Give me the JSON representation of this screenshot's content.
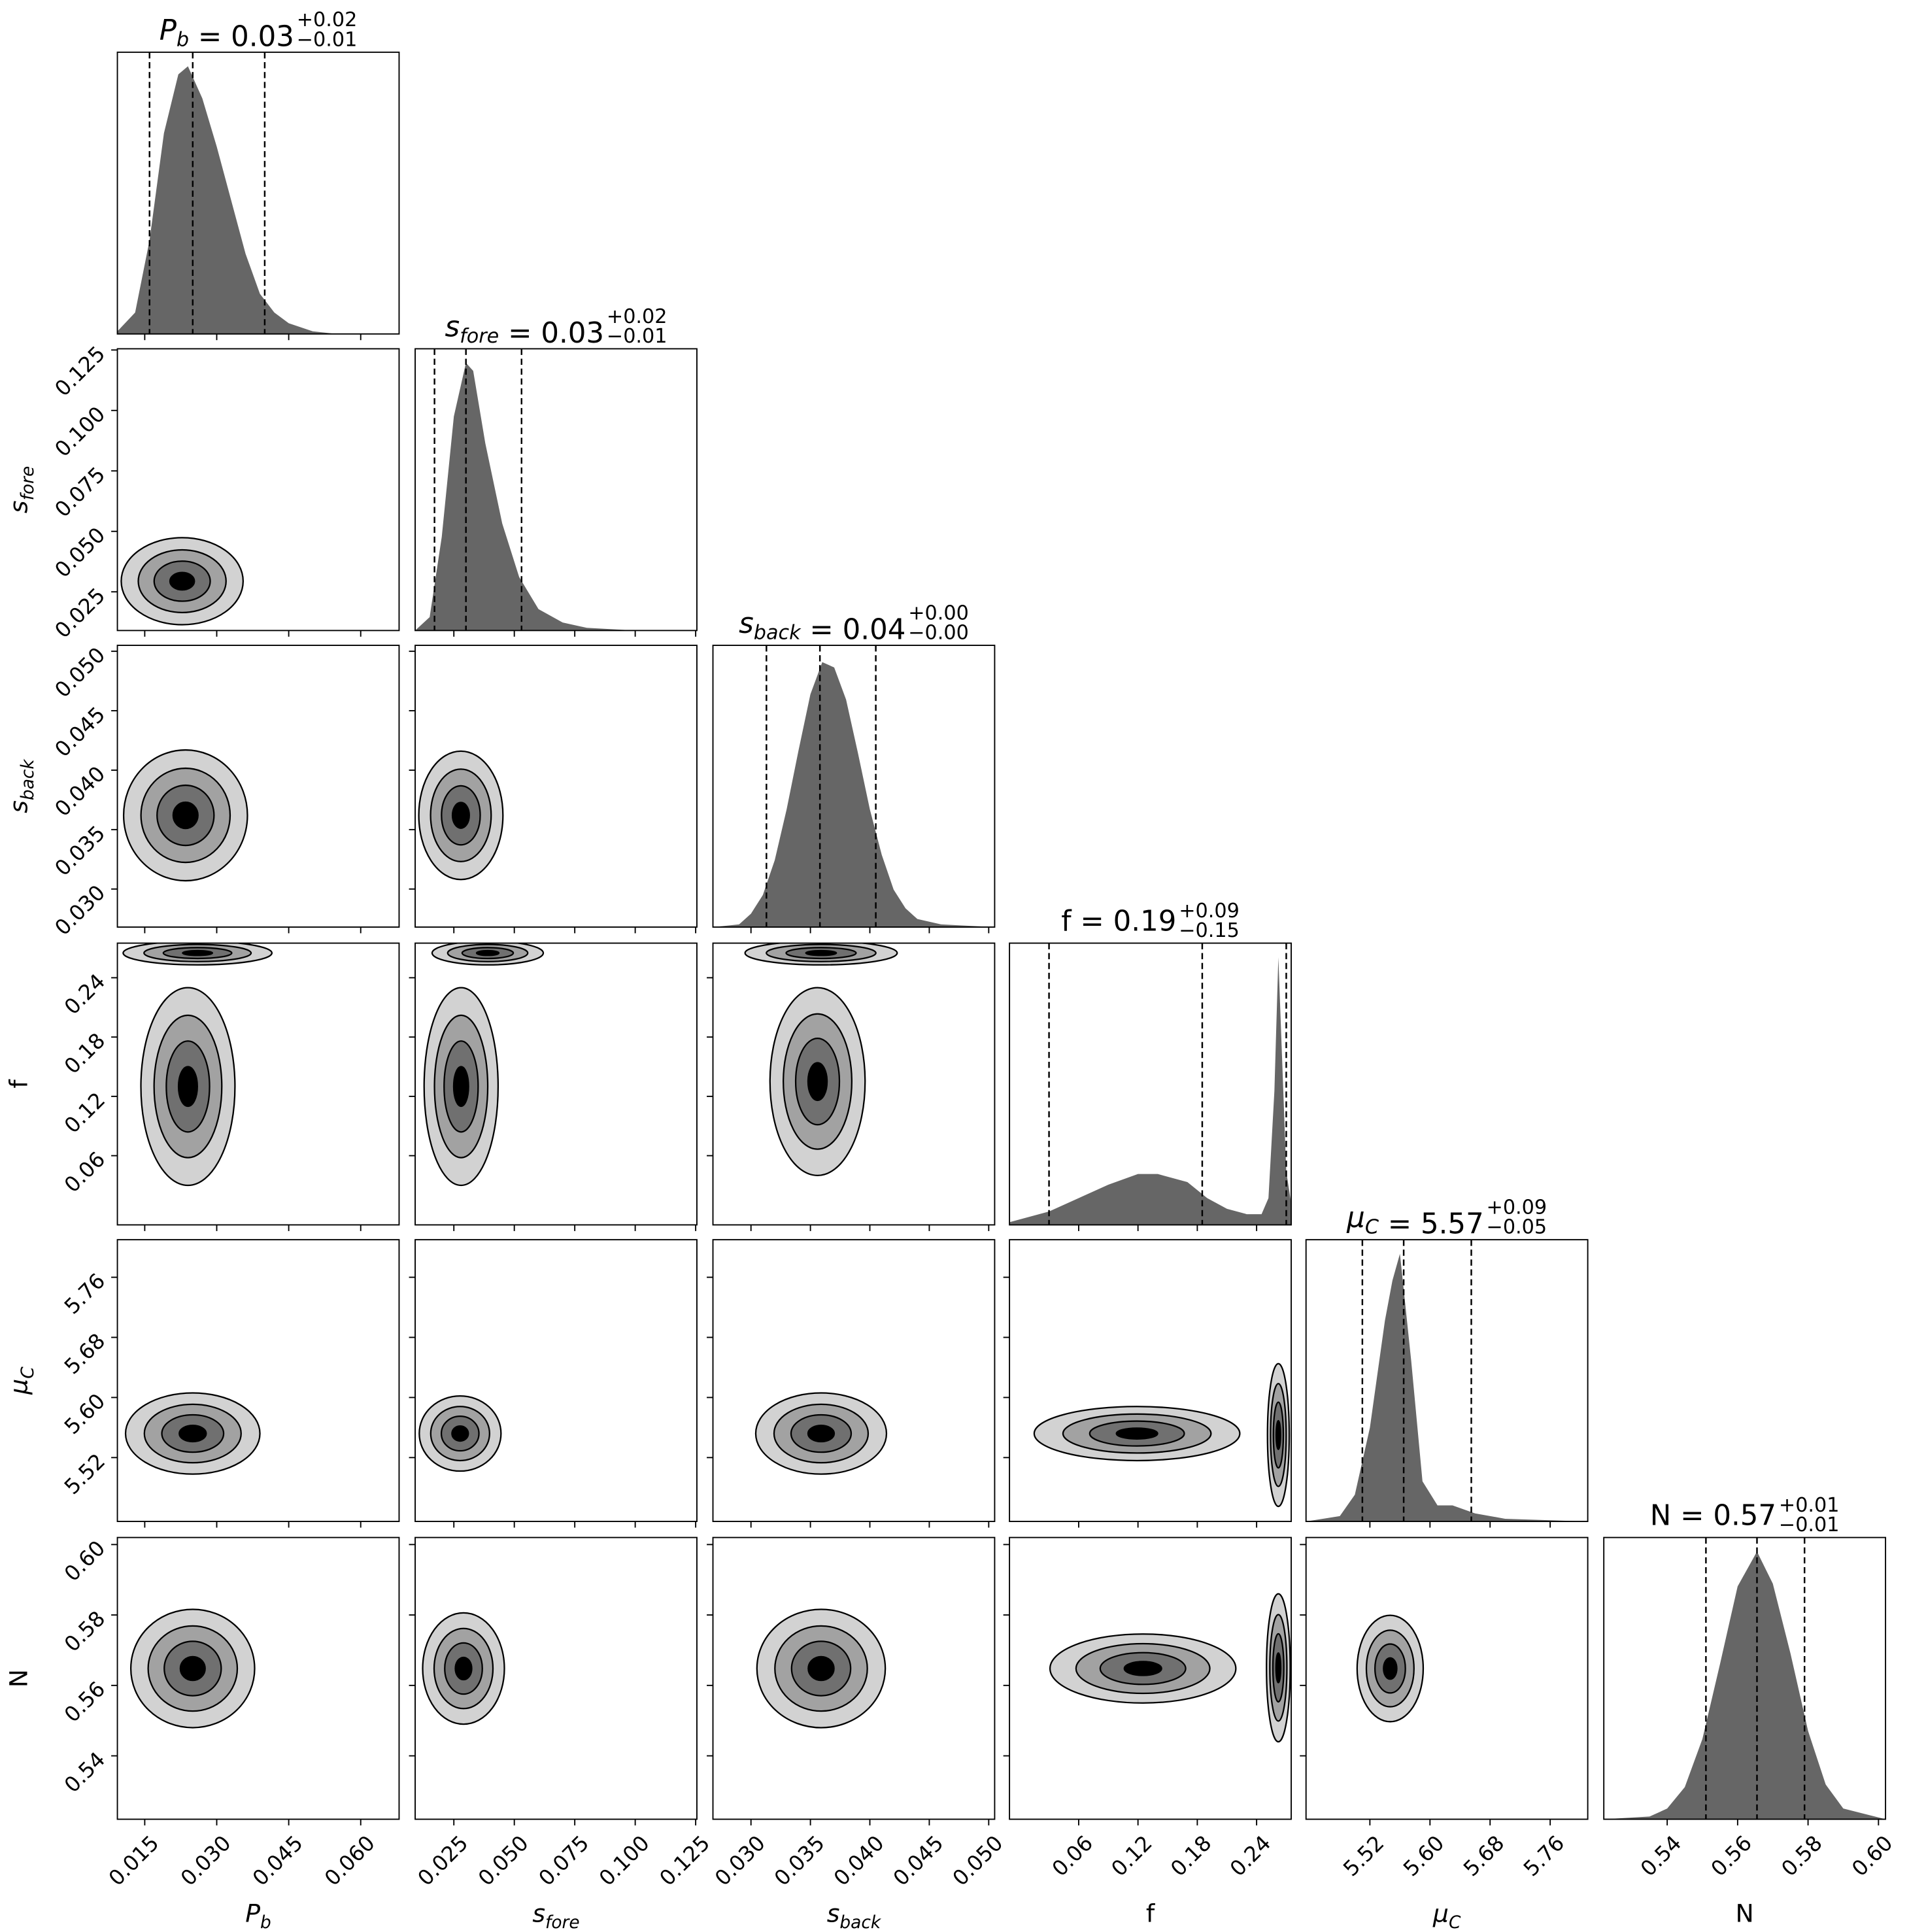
{
  "chart_data": {
    "type": "corner",
    "parameters": [
      {
        "key": "Pb",
        "name": "P",
        "sub": "b",
        "italic": true,
        "range": [
          0.0093,
          0.068
        ],
        "ticks": [
          0.015,
          0.03,
          0.045,
          0.06
        ],
        "tick_labels": [
          "0.015",
          "0.030",
          "0.045",
          "0.060"
        ],
        "title": {
          "value": "0.03",
          "plus": "+0.02",
          "minus": "−0.01"
        },
        "quantiles": [
          0.016,
          0.025,
          0.04
        ],
        "marginal": {
          "x": [
            0.0093,
            0.013,
            0.016,
            0.019,
            0.022,
            0.024,
            0.027,
            0.03,
            0.033,
            0.036,
            0.039,
            0.042,
            0.045,
            0.05,
            0.055,
            0.068
          ],
          "density": [
            0.01,
            0.08,
            0.35,
            0.75,
            0.97,
            1.0,
            0.88,
            0.7,
            0.5,
            0.3,
            0.15,
            0.08,
            0.04,
            0.01,
            0.0,
            0.0
          ]
        }
      },
      {
        "key": "sfore",
        "name": "s",
        "sub": "fore",
        "italic": true,
        "range": [
          0.009,
          0.1255
        ],
        "ticks": [
          0.025,
          0.05,
          0.075,
          0.1,
          0.125
        ],
        "tick_labels": [
          "0.025",
          "0.050",
          "0.075",
          "0.100",
          "0.125"
        ],
        "title": {
          "value": "0.03",
          "plus": "+0.02",
          "minus": "−0.01"
        },
        "quantiles": [
          0.017,
          0.03,
          0.053
        ],
        "marginal": {
          "x": [
            0.009,
            0.015,
            0.02,
            0.025,
            0.03,
            0.033,
            0.038,
            0.045,
            0.052,
            0.06,
            0.07,
            0.08,
            0.1,
            0.1255
          ],
          "density": [
            0.0,
            0.05,
            0.35,
            0.8,
            1.0,
            0.97,
            0.7,
            0.4,
            0.2,
            0.08,
            0.03,
            0.01,
            0.0,
            0.0
          ]
        }
      },
      {
        "key": "sback",
        "name": "s",
        "sub": "back",
        "italic": true,
        "range": [
          0.0268,
          0.0505
        ],
        "ticks": [
          0.03,
          0.035,
          0.04,
          0.045,
          0.05
        ],
        "tick_labels": [
          "0.030",
          "0.035",
          "0.040",
          "0.045",
          "0.050"
        ],
        "title": {
          "value": "0.04",
          "plus": "+0.00",
          "minus": "−0.00"
        },
        "quantiles": [
          0.0313,
          0.0358,
          0.0405
        ],
        "marginal": {
          "x": [
            0.0268,
            0.029,
            0.03,
            0.031,
            0.032,
            0.033,
            0.034,
            0.035,
            0.036,
            0.037,
            0.038,
            0.039,
            0.04,
            0.041,
            0.042,
            0.043,
            0.044,
            0.046,
            0.0505
          ],
          "density": [
            0.0,
            0.01,
            0.05,
            0.12,
            0.25,
            0.44,
            0.66,
            0.87,
            0.99,
            0.97,
            0.85,
            0.65,
            0.44,
            0.27,
            0.14,
            0.07,
            0.03,
            0.01,
            0.0
          ]
        }
      },
      {
        "key": "f",
        "name": "f",
        "sub": "",
        "italic": false,
        "range": [
          -0.01,
          0.275
        ],
        "ticks": [
          0.06,
          0.12,
          0.18,
          0.24
        ],
        "tick_labels": [
          "0.06",
          "0.12",
          "0.18",
          "0.24"
        ],
        "title": {
          "value": "0.19",
          "plus": "+0.09",
          "minus": "−0.15"
        },
        "quantiles": [
          0.03,
          0.185,
          0.27
        ],
        "marginal": {
          "x": [
            -0.01,
            0.0,
            0.03,
            0.06,
            0.09,
            0.12,
            0.14,
            0.17,
            0.19,
            0.21,
            0.23,
            0.245,
            0.252,
            0.258,
            0.262,
            0.266,
            0.27,
            0.275
          ],
          "density": [
            0.01,
            0.02,
            0.05,
            0.1,
            0.15,
            0.19,
            0.19,
            0.16,
            0.1,
            0.06,
            0.04,
            0.04,
            0.1,
            0.5,
            1.0,
            0.6,
            0.2,
            0.08
          ]
        }
      },
      {
        "key": "muC",
        "name": "μ",
        "sub": "C",
        "italic": true,
        "range": [
          5.435,
          5.81
        ],
        "ticks": [
          5.52,
          5.6,
          5.68,
          5.76
        ],
        "tick_labels": [
          "5.52",
          "5.60",
          "5.68",
          "5.76"
        ],
        "title": {
          "value": "5.57",
          "plus": "+0.09",
          "minus": "−0.05"
        },
        "quantiles": [
          5.51,
          5.565,
          5.655
        ],
        "marginal": {
          "x": [
            5.435,
            5.48,
            5.5,
            5.52,
            5.54,
            5.55,
            5.56,
            5.575,
            5.59,
            5.61,
            5.63,
            5.66,
            5.7,
            5.81
          ],
          "density": [
            0.0,
            0.02,
            0.1,
            0.35,
            0.75,
            0.9,
            1.0,
            0.6,
            0.15,
            0.06,
            0.06,
            0.03,
            0.01,
            0.0
          ]
        }
      },
      {
        "key": "N",
        "name": "N",
        "sub": "",
        "italic": false,
        "range": [
          0.522,
          0.602
        ],
        "ticks": [
          0.54,
          0.56,
          0.58,
          0.6
        ],
        "tick_labels": [
          "0.54",
          "0.56",
          "0.58",
          "0.60"
        ],
        "title": {
          "value": "0.57",
          "plus": "+0.01",
          "minus": "−0.01"
        },
        "quantiles": [
          0.551,
          0.5655,
          0.579
        ],
        "marginal": {
          "x": [
            0.522,
            0.535,
            0.54,
            0.545,
            0.55,
            0.555,
            0.56,
            0.5655,
            0.57,
            0.575,
            0.58,
            0.585,
            0.59,
            0.602
          ],
          "density": [
            0.0,
            0.01,
            0.04,
            0.12,
            0.3,
            0.58,
            0.87,
            1.0,
            0.88,
            0.62,
            0.33,
            0.13,
            0.04,
            0.0
          ]
        }
      }
    ],
    "pairs": [
      {
        "x": "Pb",
        "y": "sfore",
        "blobs": [
          {
            "center": [
              0.0228,
              0.0294
            ],
            "extent": [
              0.0127,
              0.018
            ]
          }
        ]
      },
      {
        "x": "Pb",
        "y": "sback",
        "blobs": [
          {
            "center": [
              0.0235,
              0.0362
            ],
            "extent": [
              0.0129,
              0.0055
            ]
          }
        ]
      },
      {
        "x": "sfore",
        "y": "sback",
        "blobs": [
          {
            "center": [
              0.0279,
              0.0362
            ],
            "extent": [
              0.0174,
              0.0054
            ]
          }
        ]
      },
      {
        "x": "Pb",
        "y": "f",
        "blobs": [
          {
            "center": [
              0.026,
              0.265
            ],
            "extent": [
              0.0155,
              0.012
            ]
          },
          {
            "center": [
              0.024,
              0.13
            ],
            "extent": [
              0.0098,
              0.1
            ]
          }
        ]
      },
      {
        "x": "sfore",
        "y": "f",
        "blobs": [
          {
            "center": [
              0.039,
              0.265
            ],
            "extent": [
              0.023,
              0.012
            ]
          },
          {
            "center": [
              0.028,
              0.13
            ],
            "extent": [
              0.0153,
              0.1
            ]
          }
        ]
      },
      {
        "x": "sback",
        "y": "f",
        "blobs": [
          {
            "center": [
              0.0359,
              0.265
            ],
            "extent": [
              0.0064,
              0.012
            ]
          },
          {
            "center": [
              0.0356,
              0.135
            ],
            "extent": [
              0.004,
              0.095
            ]
          }
        ]
      },
      {
        "x": "Pb",
        "y": "muC",
        "blobs": [
          {
            "center": [
              0.025,
              5.552
            ],
            "extent": [
              0.014,
              0.054
            ]
          }
        ]
      },
      {
        "x": "sfore",
        "y": "muC",
        "blobs": [
          {
            "center": [
              0.0276,
              5.552
            ],
            "extent": [
              0.0169,
              0.05
            ]
          }
        ]
      },
      {
        "x": "sback",
        "y": "muC",
        "blobs": [
          {
            "center": [
              0.0359,
              5.552
            ],
            "extent": [
              0.0055,
              0.054
            ]
          }
        ]
      },
      {
        "x": "f",
        "y": "muC",
        "blobs": [
          {
            "center": [
              0.119,
              5.552
            ],
            "extent": [
              0.104,
              0.036
            ]
          },
          {
            "center": [
              0.262,
              5.55
            ],
            "extent": [
              0.011,
              0.095
            ]
          }
        ]
      },
      {
        "x": "Pb",
        "y": "N",
        "blobs": [
          {
            "center": [
              0.025,
              0.5648
            ],
            "extent": [
              0.0129,
              0.0168
            ]
          }
        ]
      },
      {
        "x": "sfore",
        "y": "N",
        "blobs": [
          {
            "center": [
              0.029,
              0.5648
            ],
            "extent": [
              0.0169,
              0.0158
            ]
          }
        ]
      },
      {
        "x": "sback",
        "y": "N",
        "blobs": [
          {
            "center": [
              0.0359,
              0.5648
            ],
            "extent": [
              0.0054,
              0.0168
            ]
          }
        ]
      },
      {
        "x": "f",
        "y": "N",
        "blobs": [
          {
            "center": [
              0.125,
              0.5648
            ],
            "extent": [
              0.094,
              0.0098
            ]
          },
          {
            "center": [
              0.262,
              0.565
            ],
            "extent": [
              0.012,
              0.021
            ]
          }
        ]
      },
      {
        "x": "muC",
        "y": "N",
        "blobs": [
          {
            "center": [
              5.547,
              0.5648
            ],
            "extent": [
              0.044,
              0.0151
            ]
          }
        ]
      }
    ],
    "colors": {
      "histogram": "#666666",
      "contour_levels": [
        "#d2d2d2",
        "#a2a2a2",
        "#707070",
        "#000000"
      ],
      "quantile_line": "#000000"
    }
  }
}
